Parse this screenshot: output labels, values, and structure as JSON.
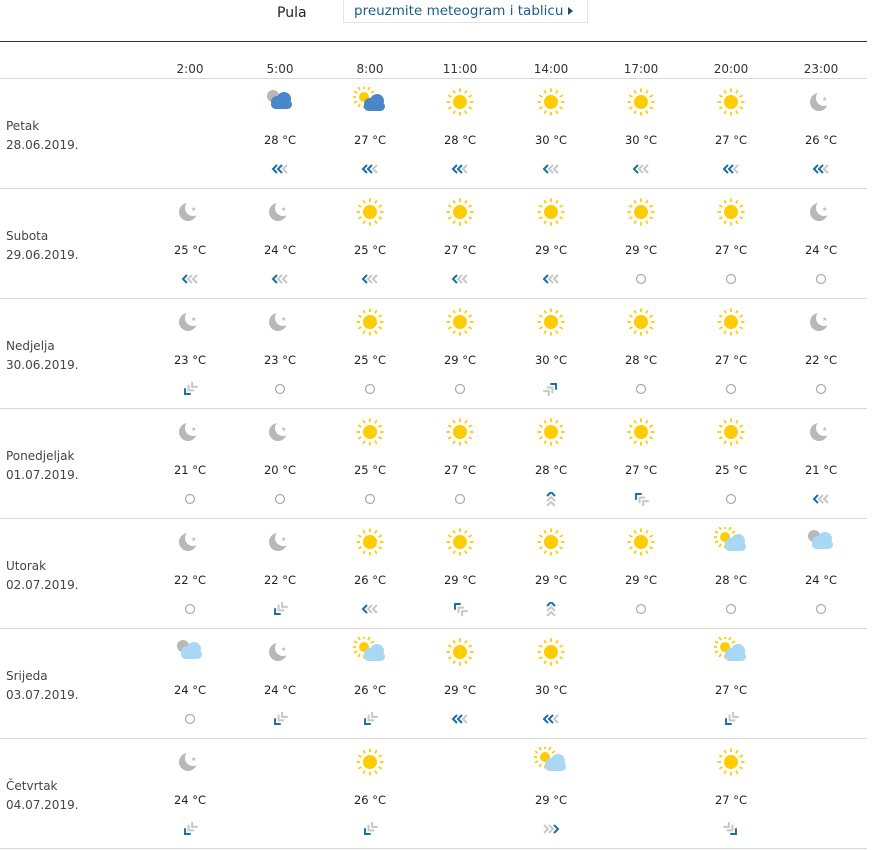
{
  "header": {
    "city": "Pula",
    "download_link": "preuzmite meteogram i tablicu"
  },
  "times": [
    "2:00",
    "5:00",
    "8:00",
    "11:00",
    "14:00",
    "17:00",
    "20:00",
    "23:00"
  ],
  "colors": {
    "sun": "#ffcc00",
    "cloud_dark": "#4a86c8",
    "cloud_light": "#a8d8f4",
    "moon": "#b8b8b8",
    "wind_strong": "#1a6fa8",
    "wind_weak": "#c8c8c8"
  },
  "days": [
    {
      "name": "Petak",
      "date": "28.06.2019.",
      "slots": [
        null,
        {
          "icon": "cloudy-night",
          "temp": "28 °C",
          "wind": "left",
          "strength": 2
        },
        {
          "icon": "partly-cloudy-day-dark",
          "temp": "27 °C",
          "wind": "left",
          "strength": 2
        },
        {
          "icon": "sun",
          "temp": "28 °C",
          "wind": "left",
          "strength": 2
        },
        {
          "icon": "sun",
          "temp": "30 °C",
          "wind": "left",
          "strength": 1
        },
        {
          "icon": "sun",
          "temp": "30 °C",
          "wind": "left",
          "strength": 1
        },
        {
          "icon": "sun",
          "temp": "27 °C",
          "wind": "left",
          "strength": 2
        },
        {
          "icon": "moon",
          "temp": "26 °C",
          "wind": "left",
          "strength": 2
        }
      ]
    },
    {
      "name": "Subota",
      "date": "29.06.2019.",
      "slots": [
        {
          "icon": "moon",
          "temp": "25 °C",
          "wind": "left",
          "strength": 1
        },
        {
          "icon": "moon",
          "temp": "24 °C",
          "wind": "left",
          "strength": 1
        },
        {
          "icon": "sun",
          "temp": "25 °C",
          "wind": "left",
          "strength": 1
        },
        {
          "icon": "sun",
          "temp": "27 °C",
          "wind": "left",
          "strength": 1
        },
        {
          "icon": "sun",
          "temp": "29 °C",
          "wind": "left",
          "strength": 1
        },
        {
          "icon": "sun",
          "temp": "29 °C",
          "wind": "calm",
          "strength": 0
        },
        {
          "icon": "sun",
          "temp": "27 °C",
          "wind": "calm",
          "strength": 0
        },
        {
          "icon": "moon",
          "temp": "24 °C",
          "wind": "calm",
          "strength": 0
        }
      ]
    },
    {
      "name": "Nedjelja",
      "date": "30.06.2019.",
      "slots": [
        {
          "icon": "moon",
          "temp": "23 °C",
          "wind": "down-left",
          "strength": 1
        },
        {
          "icon": "moon",
          "temp": "23 °C",
          "wind": "calm",
          "strength": 0
        },
        {
          "icon": "sun",
          "temp": "25 °C",
          "wind": "calm",
          "strength": 0
        },
        {
          "icon": "sun",
          "temp": "29 °C",
          "wind": "calm",
          "strength": 0
        },
        {
          "icon": "sun",
          "temp": "30 °C",
          "wind": "up-right",
          "strength": 1
        },
        {
          "icon": "sun",
          "temp": "28 °C",
          "wind": "calm",
          "strength": 0
        },
        {
          "icon": "sun",
          "temp": "27 °C",
          "wind": "calm",
          "strength": 0
        },
        {
          "icon": "moon",
          "temp": "22 °C",
          "wind": "calm",
          "strength": 0
        }
      ]
    },
    {
      "name": "Ponedjeljak",
      "date": "01.07.2019.",
      "slots": [
        {
          "icon": "moon",
          "temp": "21 °C",
          "wind": "calm",
          "strength": 0
        },
        {
          "icon": "moon",
          "temp": "20 °C",
          "wind": "calm",
          "strength": 0
        },
        {
          "icon": "sun",
          "temp": "25 °C",
          "wind": "calm",
          "strength": 0
        },
        {
          "icon": "sun",
          "temp": "27 °C",
          "wind": "calm",
          "strength": 0
        },
        {
          "icon": "sun",
          "temp": "28 °C",
          "wind": "up",
          "strength": 1
        },
        {
          "icon": "sun",
          "temp": "27 °C",
          "wind": "up-left",
          "strength": 1
        },
        {
          "icon": "sun",
          "temp": "25 °C",
          "wind": "calm",
          "strength": 0
        },
        {
          "icon": "moon",
          "temp": "21 °C",
          "wind": "left",
          "strength": 1
        }
      ]
    },
    {
      "name": "Utorak",
      "date": "02.07.2019.",
      "slots": [
        {
          "icon": "moon",
          "temp": "22 °C",
          "wind": "calm",
          "strength": 0
        },
        {
          "icon": "moon",
          "temp": "22 °C",
          "wind": "down-left",
          "strength": 1
        },
        {
          "icon": "sun",
          "temp": "26 °C",
          "wind": "left",
          "strength": 1
        },
        {
          "icon": "sun",
          "temp": "29 °C",
          "wind": "up-left",
          "strength": 1
        },
        {
          "icon": "sun",
          "temp": "29 °C",
          "wind": "up",
          "strength": 1
        },
        {
          "icon": "sun",
          "temp": "29 °C",
          "wind": "calm",
          "strength": 0
        },
        {
          "icon": "partly-cloudy-day",
          "temp": "28 °C",
          "wind": "calm",
          "strength": 0
        },
        {
          "icon": "partly-cloudy-night",
          "temp": "24 °C",
          "wind": "calm",
          "strength": 0
        }
      ]
    },
    {
      "name": "Srijeda",
      "date": "03.07.2019.",
      "slots": [
        {
          "icon": "partly-cloudy-night",
          "temp": "24 °C",
          "wind": "calm",
          "strength": 0
        },
        {
          "icon": "moon",
          "temp": "24 °C",
          "wind": "down-left",
          "strength": 1
        },
        {
          "icon": "partly-cloudy-day",
          "temp": "26 °C",
          "wind": "down-left",
          "strength": 1
        },
        {
          "icon": "sun",
          "temp": "29 °C",
          "wind": "left",
          "strength": 2
        },
        {
          "icon": "sun",
          "temp": "30 °C",
          "wind": "left",
          "strength": 2
        },
        null,
        {
          "icon": "partly-cloudy-day",
          "temp": "27 °C",
          "wind": "down-left",
          "strength": 1
        },
        null
      ]
    },
    {
      "name": "Četvrtak",
      "date": "04.07.2019.",
      "slots": [
        {
          "icon": "moon",
          "temp": "24 °C",
          "wind": "down-left",
          "strength": 1
        },
        null,
        {
          "icon": "sun",
          "temp": "26 °C",
          "wind": "down-left",
          "strength": 1
        },
        null,
        {
          "icon": "partly-cloudy-day",
          "temp": "29 °C",
          "wind": "right",
          "strength": 1
        },
        null,
        {
          "icon": "sun",
          "temp": "27 °C",
          "wind": "down-right",
          "strength": 1
        },
        null
      ]
    }
  ]
}
